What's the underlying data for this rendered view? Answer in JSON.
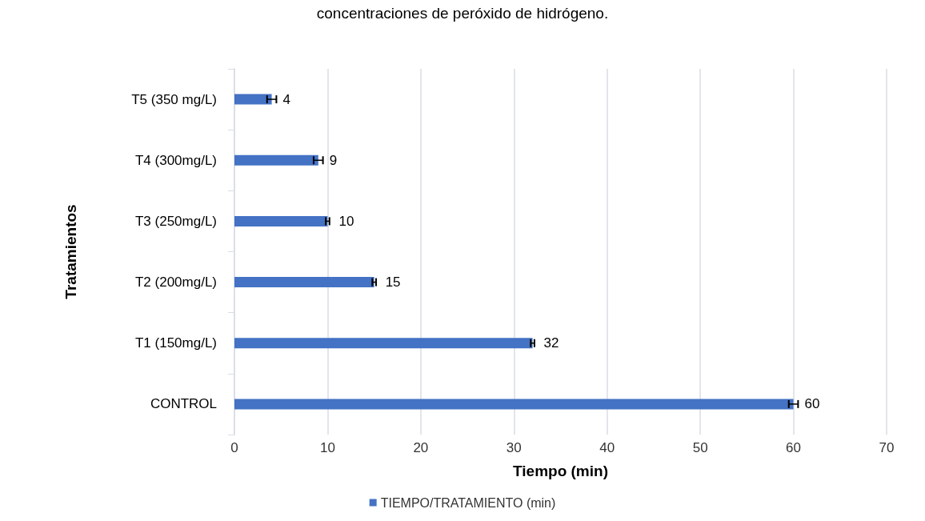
{
  "chart_data": {
    "type": "bar",
    "orientation": "horizontal",
    "title": "concentraciones de peróxido de hidrógeno.",
    "xlabel": "Tiempo (min)",
    "ylabel": "Tratamientos",
    "categories": [
      "T5 (350 mg/L)",
      "T4 (300mg/L)",
      "T3 (250mg/L)",
      "T2 (200mg/L)",
      "T1 (150mg/L)",
      "CONTROL"
    ],
    "series": [
      {
        "name": "TIEMPO/TRATAMIENTO (min)",
        "color": "#4472c4",
        "values": [
          4,
          9,
          10,
          15,
          32,
          60
        ],
        "errors": [
          0.5,
          0.5,
          0.2,
          0.2,
          0.2,
          0.5
        ]
      }
    ],
    "xlim": [
      0,
      70
    ],
    "xticks": [
      0,
      10,
      20,
      30,
      40,
      50,
      60,
      70
    ],
    "grid": "x",
    "legend": "bottom",
    "data_labels": true
  }
}
